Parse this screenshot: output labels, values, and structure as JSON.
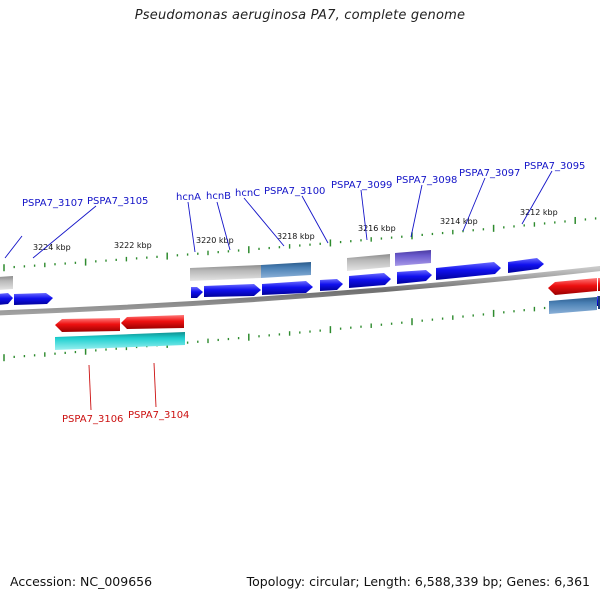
{
  "title": "Pseudomonas aeruginosa PA7, complete genome",
  "footer": {
    "accession": "Accession: NC_009656",
    "summary": "Topology: circular; Length: 6,588,339 bp; Genes: 6,361"
  },
  "colors": {
    "forward_label": "#1414c8",
    "reverse_label": "#cc1111",
    "backbone": "#808080",
    "tick": "#2e8b2e",
    "blue_gene": "#1010ee",
    "red_gene": "#ee1010",
    "cyan_gene": "#20c8c8",
    "grey_gene": "#b4b4b4",
    "steelblue_gene": "#4a80b4",
    "purple_gene": "#6a5acd"
  },
  "coordinates": [
    {
      "text": "3224 kbp"
    },
    {
      "text": "3222 kbp"
    },
    {
      "text": "3220 kbp"
    },
    {
      "text": "3218 kbp"
    },
    {
      "text": "3216 kbp"
    },
    {
      "text": "3214 kbp"
    },
    {
      "text": "3212 kbp"
    }
  ],
  "forward_labels": [
    {
      "text": "PSPA7_3107"
    },
    {
      "text": "PSPA7_3105"
    },
    {
      "text": "hcnA"
    },
    {
      "text": "hcnB"
    },
    {
      "text": "hcnC"
    },
    {
      "text": "PSPA7_3100"
    },
    {
      "text": "PSPA7_3099"
    },
    {
      "text": "PSPA7_3098"
    },
    {
      "text": "PSPA7_3097"
    },
    {
      "text": "PSPA7_3095"
    }
  ],
  "reverse_labels": [
    {
      "text": "PSPA7_3106"
    },
    {
      "text": "PSPA7_3104"
    }
  ]
}
